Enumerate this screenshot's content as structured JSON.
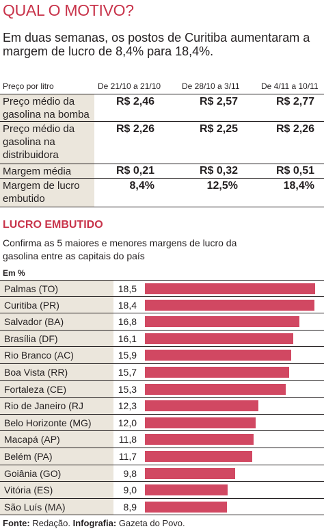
{
  "headline": "QUAL O MOTIVO?",
  "intro": "Em duas semanas, os postos de Curitiba aumentaram a margem de lucro de 8,4% para 18,4%.",
  "table": {
    "columns": [
      "Preço por litro",
      "De 21/10 a 21/10",
      "De 28/10 a 3/11",
      "De 4/11 a 10/11"
    ],
    "rows": [
      {
        "label": "Preço médio da gasolina na bomba",
        "values": [
          "R$ 2,46",
          "R$ 2,57",
          "R$ 2,77"
        ]
      },
      {
        "label": "Preço médio da gasolina na distribuidora",
        "values": [
          "R$ 2,26",
          "R$ 2,25",
          "R$ 2,26"
        ]
      },
      {
        "label": "Margem média",
        "values": [
          "R$ 0,21",
          "R$ 0,32",
          "R$ 0,51"
        ]
      },
      {
        "label": "Margem de lucro embutido",
        "values": [
          "8,4%",
          "12,5%",
          "18,4%"
        ]
      }
    ]
  },
  "section": {
    "title": "LUCRO EMBUTIDO",
    "subtitle": "Confirma as 5 maiores e menores margens de lucro da gasolina entre as capitais do país"
  },
  "chart_data": {
    "type": "bar",
    "orientation": "horizontal",
    "ylabel": "Em %",
    "categories": [
      "Palmas (TO)",
      "Curitiba (PR)",
      "Salvador (BA)",
      "Brasília (DF)",
      "Rio Branco (AC)",
      "Boa Vista (RR)",
      "Fortaleza (CE)",
      "Rio de Janeiro (RJ",
      "Belo Horizonte (MG)",
      "Macapá (AP)",
      "Belém (PA)",
      "Goiânia (GO)",
      "Vitória (ES)",
      "São Luís (MA)"
    ],
    "values": [
      18.5,
      18.4,
      16.8,
      16.1,
      15.9,
      15.7,
      15.3,
      12.3,
      12.0,
      11.8,
      11.7,
      9.8,
      9.0,
      8.9
    ],
    "value_labels": [
      "18,5",
      "18,4",
      "16,8",
      "16,1",
      "15,9",
      "15,7",
      "15,3",
      "12,3",
      "12,0",
      "11,8",
      "11,7",
      "9,8",
      "9,0",
      "8,9"
    ],
    "xlim": [
      0,
      18.5
    ],
    "bar_color": "#d14862",
    "label_bg_color": "#ebe6dc"
  },
  "source": {
    "label1": "Fonte:",
    "text1": "Redação.",
    "label2": "Infografia:",
    "text2": "Gazeta do Povo."
  }
}
